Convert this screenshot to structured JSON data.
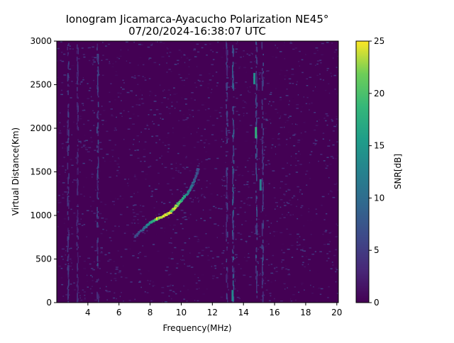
{
  "chart_data": {
    "type": "heatmap",
    "title": "Ionogram Jicamarca-Ayacucho Polarization NE45°",
    "subtitle": "07/20/2024-16:38:07 UTC",
    "xlabel": "Frequency(MHz)",
    "ylabel": "Virtual Distance(Km)",
    "xlim": [
      2.0,
      20.1
    ],
    "ylim": [
      0,
      3000
    ],
    "x_ticks": [
      4,
      6,
      8,
      10,
      12,
      14,
      16,
      18,
      20
    ],
    "x_tick_labels": [
      "4",
      "6",
      "8",
      "10",
      "12",
      "14",
      "16",
      "18",
      "20"
    ],
    "y_ticks": [
      0,
      500,
      1000,
      1500,
      2000,
      2500,
      3000
    ],
    "y_tick_labels": [
      "0",
      "500",
      "1000",
      "1500",
      "2000",
      "2500",
      "3000"
    ],
    "colorbar": {
      "label": "SNR[dB]",
      "range": [
        0,
        25
      ],
      "ticks": [
        0,
        5,
        10,
        15,
        20,
        25
      ],
      "tick_labels": [
        "0",
        "5",
        "10",
        "15",
        "20",
        "25"
      ],
      "colormap": "viridis"
    },
    "grid": false,
    "noise_floor_snr_db": [
      0,
      4
    ],
    "trace": {
      "name": "",
      "points": [
        {
          "x": 7.0,
          "y": 760,
          "snr": 6
        },
        {
          "x": 7.6,
          "y": 860,
          "snr": 9
        },
        {
          "x": 8.0,
          "y": 920,
          "snr": 14
        },
        {
          "x": 8.4,
          "y": 960,
          "snr": 22
        },
        {
          "x": 8.8,
          "y": 990,
          "snr": 24
        },
        {
          "x": 9.2,
          "y": 1030,
          "snr": 23
        },
        {
          "x": 9.6,
          "y": 1100,
          "snr": 22
        },
        {
          "x": 10.0,
          "y": 1180,
          "snr": 18
        },
        {
          "x": 10.4,
          "y": 1260,
          "snr": 13
        },
        {
          "x": 10.8,
          "y": 1400,
          "snr": 8
        },
        {
          "x": 11.1,
          "y": 1550,
          "snr": 6
        }
      ]
    },
    "vertical_streaks": [
      {
        "x": 2.7,
        "snr": 5
      },
      {
        "x": 3.3,
        "snr": 4
      },
      {
        "x": 4.6,
        "snr": 6
      },
      {
        "x": 12.9,
        "snr": 5
      },
      {
        "x": 13.3,
        "snr": 8
      },
      {
        "x": 14.8,
        "snr": 7
      },
      {
        "x": 15.2,
        "snr": 6
      }
    ],
    "hotspots": [
      {
        "x": 14.8,
        "y": 1950,
        "snr": 18
      },
      {
        "x": 14.7,
        "y": 2570,
        "snr": 14
      },
      {
        "x": 15.1,
        "y": 1350,
        "snr": 12
      },
      {
        "x": 13.3,
        "y": 80,
        "snr": 13
      }
    ]
  },
  "colors": {
    "viridis_low": "#440154",
    "viridis_mid": "#21918c",
    "viridis_high": "#fde725",
    "axis": "#000000",
    "background": "#ffffff"
  }
}
